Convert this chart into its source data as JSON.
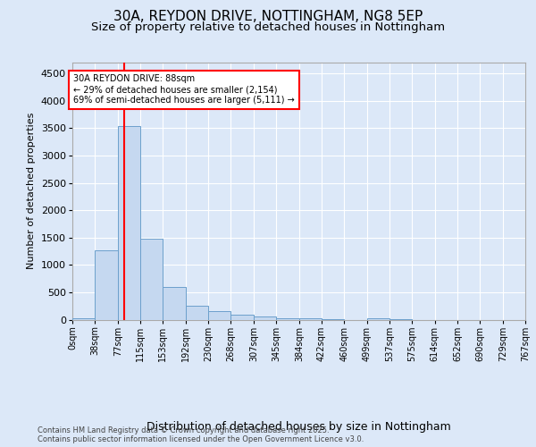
{
  "title1": "30A, REYDON DRIVE, NOTTINGHAM, NG8 5EP",
  "title2": "Size of property relative to detached houses in Nottingham",
  "xlabel": "Distribution of detached houses by size in Nottingham",
  "ylabel": "Number of detached properties",
  "bin_edges": [
    0,
    38,
    77,
    115,
    153,
    192,
    230,
    268,
    307,
    345,
    384,
    422,
    460,
    499,
    537,
    575,
    614,
    652,
    690,
    729,
    767
  ],
  "bin_labels": [
    "0sqm",
    "38sqm",
    "77sqm",
    "115sqm",
    "153sqm",
    "192sqm",
    "230sqm",
    "268sqm",
    "307sqm",
    "345sqm",
    "384sqm",
    "422sqm",
    "460sqm",
    "499sqm",
    "537sqm",
    "575sqm",
    "614sqm",
    "652sqm",
    "690sqm",
    "729sqm",
    "767sqm"
  ],
  "bar_heights": [
    30,
    1270,
    3540,
    1480,
    600,
    255,
    155,
    90,
    55,
    20,
    30,
    5,
    0,
    30,
    5,
    0,
    0,
    0,
    0,
    0
  ],
  "bar_color": "#c5d8f0",
  "bar_edge_color": "#6ca0cc",
  "red_line_x": 88,
  "annotation_text": "30A REYDON DRIVE: 88sqm\n← 29% of detached houses are smaller (2,154)\n69% of semi-detached houses are larger (5,111) →",
  "ylim": [
    0,
    4700
  ],
  "yticks": [
    0,
    500,
    1000,
    1500,
    2000,
    2500,
    3000,
    3500,
    4000,
    4500
  ],
  "background_color": "#dce8f8",
  "axes_background": "#dce8f8",
  "footer_text": "Contains HM Land Registry data © Crown copyright and database right 2025.\nContains public sector information licensed under the Open Government Licence v3.0.",
  "title_fontsize": 11,
  "subtitle_fontsize": 9.5,
  "xlabel_fontsize": 9,
  "ylabel_fontsize": 8
}
